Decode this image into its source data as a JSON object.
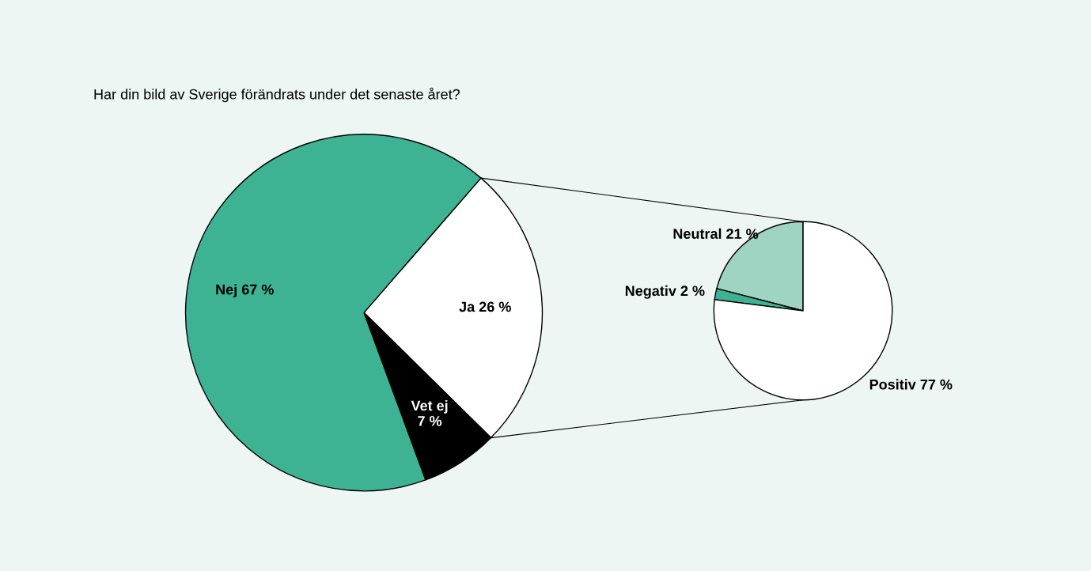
{
  "chart_data": [
    {
      "type": "pie",
      "title": "Har din bild av Sverige förändrats under det senaste året?",
      "categories": [
        "Ja",
        "Vet ej",
        "Nej"
      ],
      "values": [
        26,
        7,
        67
      ],
      "value_labels": [
        "26 %",
        "7 %",
        "67 %"
      ],
      "colors": [
        "#ffffff",
        "#000000",
        "#3db394"
      ]
    },
    {
      "type": "pie",
      "categories": [
        "Neutral",
        "Negativ",
        "Positiv"
      ],
      "values": [
        21,
        2,
        77
      ],
      "value_labels": [
        "21 %",
        "2 %",
        "77 %"
      ],
      "colors": [
        "#a0d4c2",
        "#3db394",
        "#ffffff"
      ]
    }
  ]
}
